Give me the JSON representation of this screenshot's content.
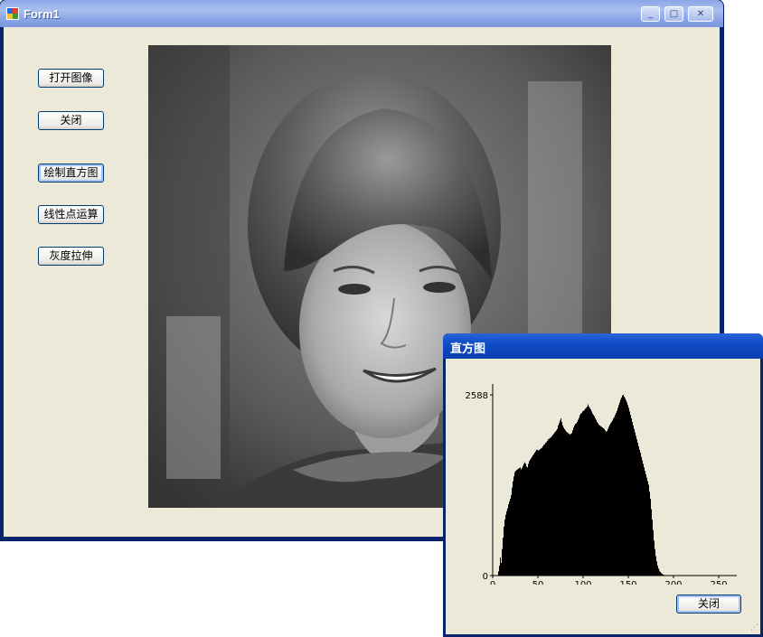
{
  "main_window": {
    "title": "Form1",
    "controls": {
      "minimize": "_",
      "maximize": "□",
      "close": "✕"
    },
    "buttons": {
      "open_image": "打开图像",
      "close": "关闭",
      "draw_histogram": "绘制直方图",
      "linear_point_op": "线性点运算",
      "gray_stretch": "灰度拉伸"
    },
    "image_alt": "grayscale portrait photo"
  },
  "histogram_window": {
    "title": "直方图",
    "close_button": "关闭"
  },
  "chart_data": {
    "type": "bar",
    "title": "",
    "xlabel": "",
    "ylabel": "",
    "xlim": [
      0,
      270
    ],
    "ylim": [
      0,
      2588
    ],
    "x_ticks": [
      0,
      50,
      100,
      150,
      200,
      250
    ],
    "y_ticks": [
      0,
      2588
    ],
    "values": [
      0,
      0,
      0,
      0,
      0,
      0,
      60,
      140,
      260,
      180,
      380,
      540,
      700,
      800,
      870,
      920,
      960,
      1020,
      1060,
      1100,
      1150,
      1260,
      1350,
      1420,
      1480,
      1500,
      1510,
      1520,
      1530,
      1540,
      1550,
      1520,
      1540,
      1570,
      1600,
      1620,
      1600,
      1560,
      1550,
      1600,
      1640,
      1660,
      1680,
      1700,
      1720,
      1740,
      1760,
      1780,
      1800,
      1800,
      1790,
      1800,
      1810,
      1820,
      1830,
      1850,
      1870,
      1880,
      1900,
      1910,
      1930,
      1950,
      1960,
      1970,
      1980,
      2000,
      2010,
      2030,
      2050,
      2060,
      2080,
      2100,
      2150,
      2180,
      2220,
      2250,
      2200,
      2150,
      2120,
      2100,
      2080,
      2060,
      2050,
      2040,
      2030,
      2020,
      2030,
      2040,
      2080,
      2120,
      2150,
      2170,
      2180,
      2200,
      2230,
      2260,
      2300,
      2320,
      2330,
      2350,
      2360,
      2370,
      2390,
      2400,
      2420,
      2450,
      2420,
      2400,
      2380,
      2350,
      2320,
      2300,
      2280,
      2250,
      2230,
      2200,
      2180,
      2160,
      2150,
      2140,
      2130,
      2120,
      2110,
      2100,
      2080,
      2060,
      2070,
      2100,
      2130,
      2160,
      2180,
      2200,
      2220,
      2250,
      2270,
      2300,
      2330,
      2360,
      2400,
      2440,
      2480,
      2520,
      2550,
      2580,
      2588,
      2560,
      2540,
      2510,
      2480,
      2440,
      2400,
      2350,
      2300,
      2250,
      2200,
      2150,
      2100,
      2050,
      2000,
      1950,
      1900,
      1850,
      1800,
      1760,
      1700,
      1650,
      1600,
      1550,
      1500,
      1450,
      1400,
      1350,
      1300,
      1200,
      1100,
      950,
      800,
      650,
      500,
      380,
      280,
      200,
      140,
      100,
      70,
      50,
      35,
      25,
      15,
      10,
      5,
      3,
      2,
      1,
      0,
      0,
      0,
      0,
      0,
      0,
      0,
      0,
      0,
      0,
      0,
      0,
      0,
      0,
      0,
      0,
      0,
      0,
      0,
      0,
      0,
      0,
      0,
      0,
      0,
      0,
      0,
      0,
      0,
      0,
      0,
      0,
      0,
      0,
      0,
      0,
      0,
      0,
      0,
      0,
      0,
      0,
      0,
      0,
      0,
      0,
      0,
      0,
      0,
      0,
      0,
      0,
      0,
      0,
      0,
      0,
      0,
      0,
      0,
      0,
      0,
      0,
      0,
      0,
      0,
      0,
      0,
      0,
      0,
      0,
      0,
      0,
      0,
      0,
      0,
      0,
      0,
      0,
      0,
      0,
      0,
      0
    ]
  },
  "colors": {
    "title_bar_inactive": "#8aa6e6",
    "title_bar_active": "#0f4bc7",
    "window_bg": "#ece9d8",
    "button_border": "#003c74"
  }
}
